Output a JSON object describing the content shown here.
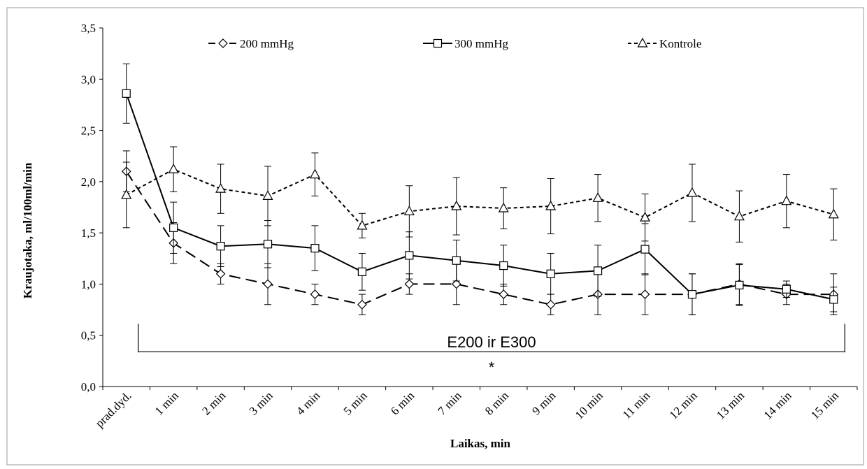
{
  "chart_data": {
    "type": "line",
    "xlabel": "Laikas, min",
    "ylabel": "Kraujotaka, ml/100ml/min",
    "ylim": [
      0,
      3.5
    ],
    "yticks": [
      "0,0",
      "0,5",
      "1,0",
      "1,5",
      "2,0",
      "2,5",
      "3,0",
      "3,5"
    ],
    "categories": [
      "prad.dyd.",
      "1 min",
      "2 min",
      "3 min",
      "4 min",
      "5 min",
      "6 min",
      "7 min",
      "8 min",
      "9 min",
      "10 min",
      "11 min",
      "12 min",
      "13 min",
      "14 min",
      "15 min"
    ],
    "grid": false,
    "legend_position": "top",
    "series": [
      {
        "name": "200 mmHg",
        "marker": "diamond",
        "line": "long-dash",
        "color": "#000000",
        "values": [
          2.1,
          1.4,
          1.1,
          1.0,
          0.9,
          0.8,
          1.0,
          1.0,
          0.9,
          0.8,
          0.9,
          0.9,
          0.9,
          1.0,
          0.9,
          0.9
        ],
        "errors": [
          0.2,
          0.2,
          0.1,
          0.2,
          0.1,
          0.1,
          0.1,
          0.2,
          0.1,
          0.1,
          0.2,
          0.2,
          0.2,
          0.2,
          0.1,
          0.2
        ]
      },
      {
        "name": "300 mmHg",
        "marker": "square",
        "line": "solid",
        "color": "#000000",
        "values": [
          2.86,
          1.55,
          1.37,
          1.39,
          1.35,
          1.12,
          1.28,
          1.23,
          1.18,
          1.1,
          1.13,
          1.34,
          0.9,
          0.99,
          0.95,
          0.85
        ],
        "errors": [
          0.29,
          0.25,
          0.2,
          0.23,
          0.22,
          0.18,
          0.23,
          0.2,
          0.2,
          0.2,
          0.25,
          0.25,
          0.2,
          0.2,
          0.08,
          0.12
        ]
      },
      {
        "name": "Kontrole",
        "marker": "triangle",
        "line": "short-dash",
        "color": "#000000",
        "values": [
          1.87,
          2.12,
          1.93,
          1.86,
          2.07,
          1.57,
          1.71,
          1.76,
          1.74,
          1.76,
          1.84,
          1.65,
          1.89,
          1.66,
          1.81,
          1.68
        ],
        "errors": [
          0.32,
          0.22,
          0.24,
          0.29,
          0.21,
          0.12,
          0.25,
          0.28,
          0.2,
          0.27,
          0.23,
          0.23,
          0.28,
          0.25,
          0.26,
          0.25
        ]
      }
    ],
    "annotation": {
      "text": "E200 ir E300",
      "marker": "*",
      "from_category": "prad.dyd.",
      "to_category": "15 min",
      "y_value": 0.34
    }
  }
}
